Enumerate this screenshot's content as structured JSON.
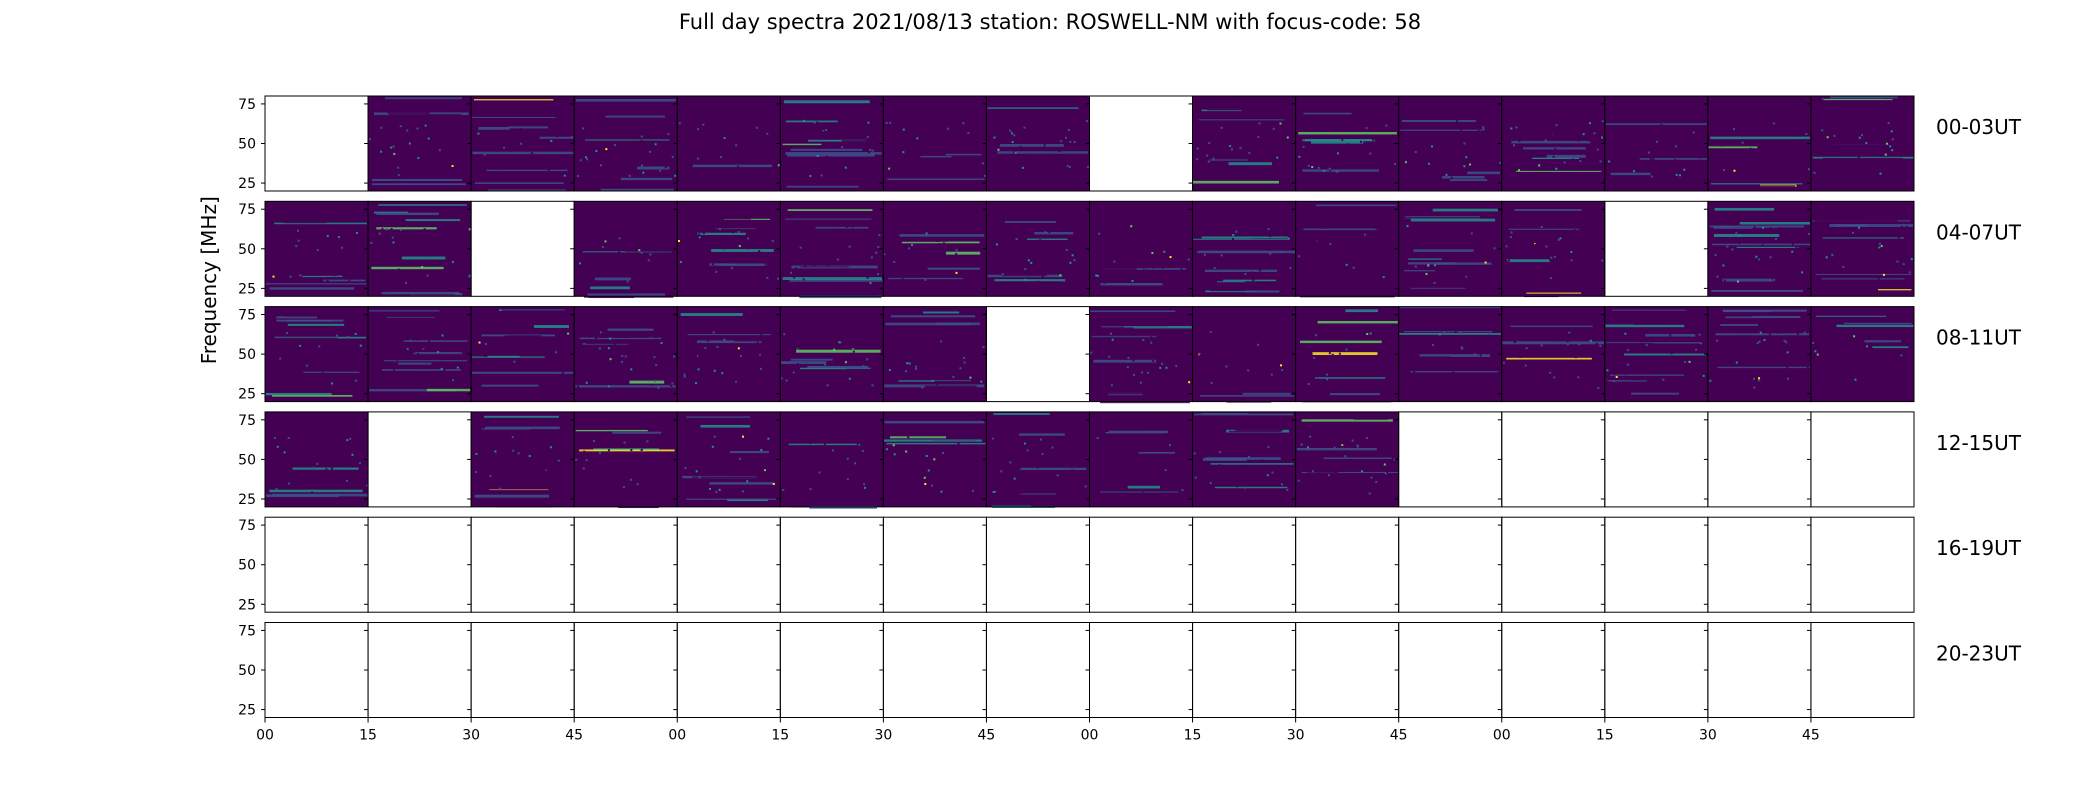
{
  "figure": {
    "title": "Full day spectra 2021/08/13 station: ROSWELL-NM with focus-code: 58"
  },
  "chart_data": {
    "type": "heatmap",
    "title": "Full day spectra 2021/08/13 station: ROSWELL-NM with focus-code: 58",
    "xlabel": "",
    "ylabel": "Frequency [MHz]",
    "y_ticks": [
      "25",
      "50",
      "75"
    ],
    "y_tick_values": [
      25,
      50,
      75
    ],
    "ylim": [
      20,
      80
    ],
    "x_ticks": [
      "00",
      "15",
      "30",
      "45",
      "00",
      "15",
      "30",
      "45",
      "00",
      "15",
      "30",
      "45",
      "00",
      "15",
      "30",
      "45"
    ],
    "row_labels": [
      "00-03UT",
      "04-07UT",
      "08-11UT",
      "12-15UT",
      "16-19UT",
      "20-23UT"
    ],
    "panels_per_row": 16,
    "panel_minutes": 15,
    "colormap": [
      "#440154",
      "#3b528b",
      "#21918c",
      "#5ec962",
      "#fde725"
    ],
    "panel_has_data": [
      [
        0,
        1,
        1,
        1,
        1,
        1,
        1,
        1,
        0,
        1,
        1,
        1,
        1,
        1,
        1,
        1
      ],
      [
        1,
        1,
        0,
        1,
        1,
        1,
        1,
        1,
        1,
        1,
        1,
        1,
        1,
        0,
        1,
        1
      ],
      [
        1,
        1,
        1,
        1,
        1,
        1,
        1,
        0,
        1,
        1,
        1,
        1,
        1,
        1,
        1,
        1
      ],
      [
        1,
        0,
        1,
        1,
        1,
        1,
        1,
        1,
        1,
        1,
        1,
        0,
        0,
        0,
        0,
        0
      ],
      [
        0,
        0,
        0,
        0,
        0,
        0,
        0,
        0,
        0,
        0,
        0,
        0,
        0,
        0,
        0,
        0
      ],
      [
        0,
        0,
        0,
        0,
        0,
        0,
        0,
        0,
        0,
        0,
        0,
        0,
        0,
        0,
        0,
        0
      ]
    ]
  }
}
